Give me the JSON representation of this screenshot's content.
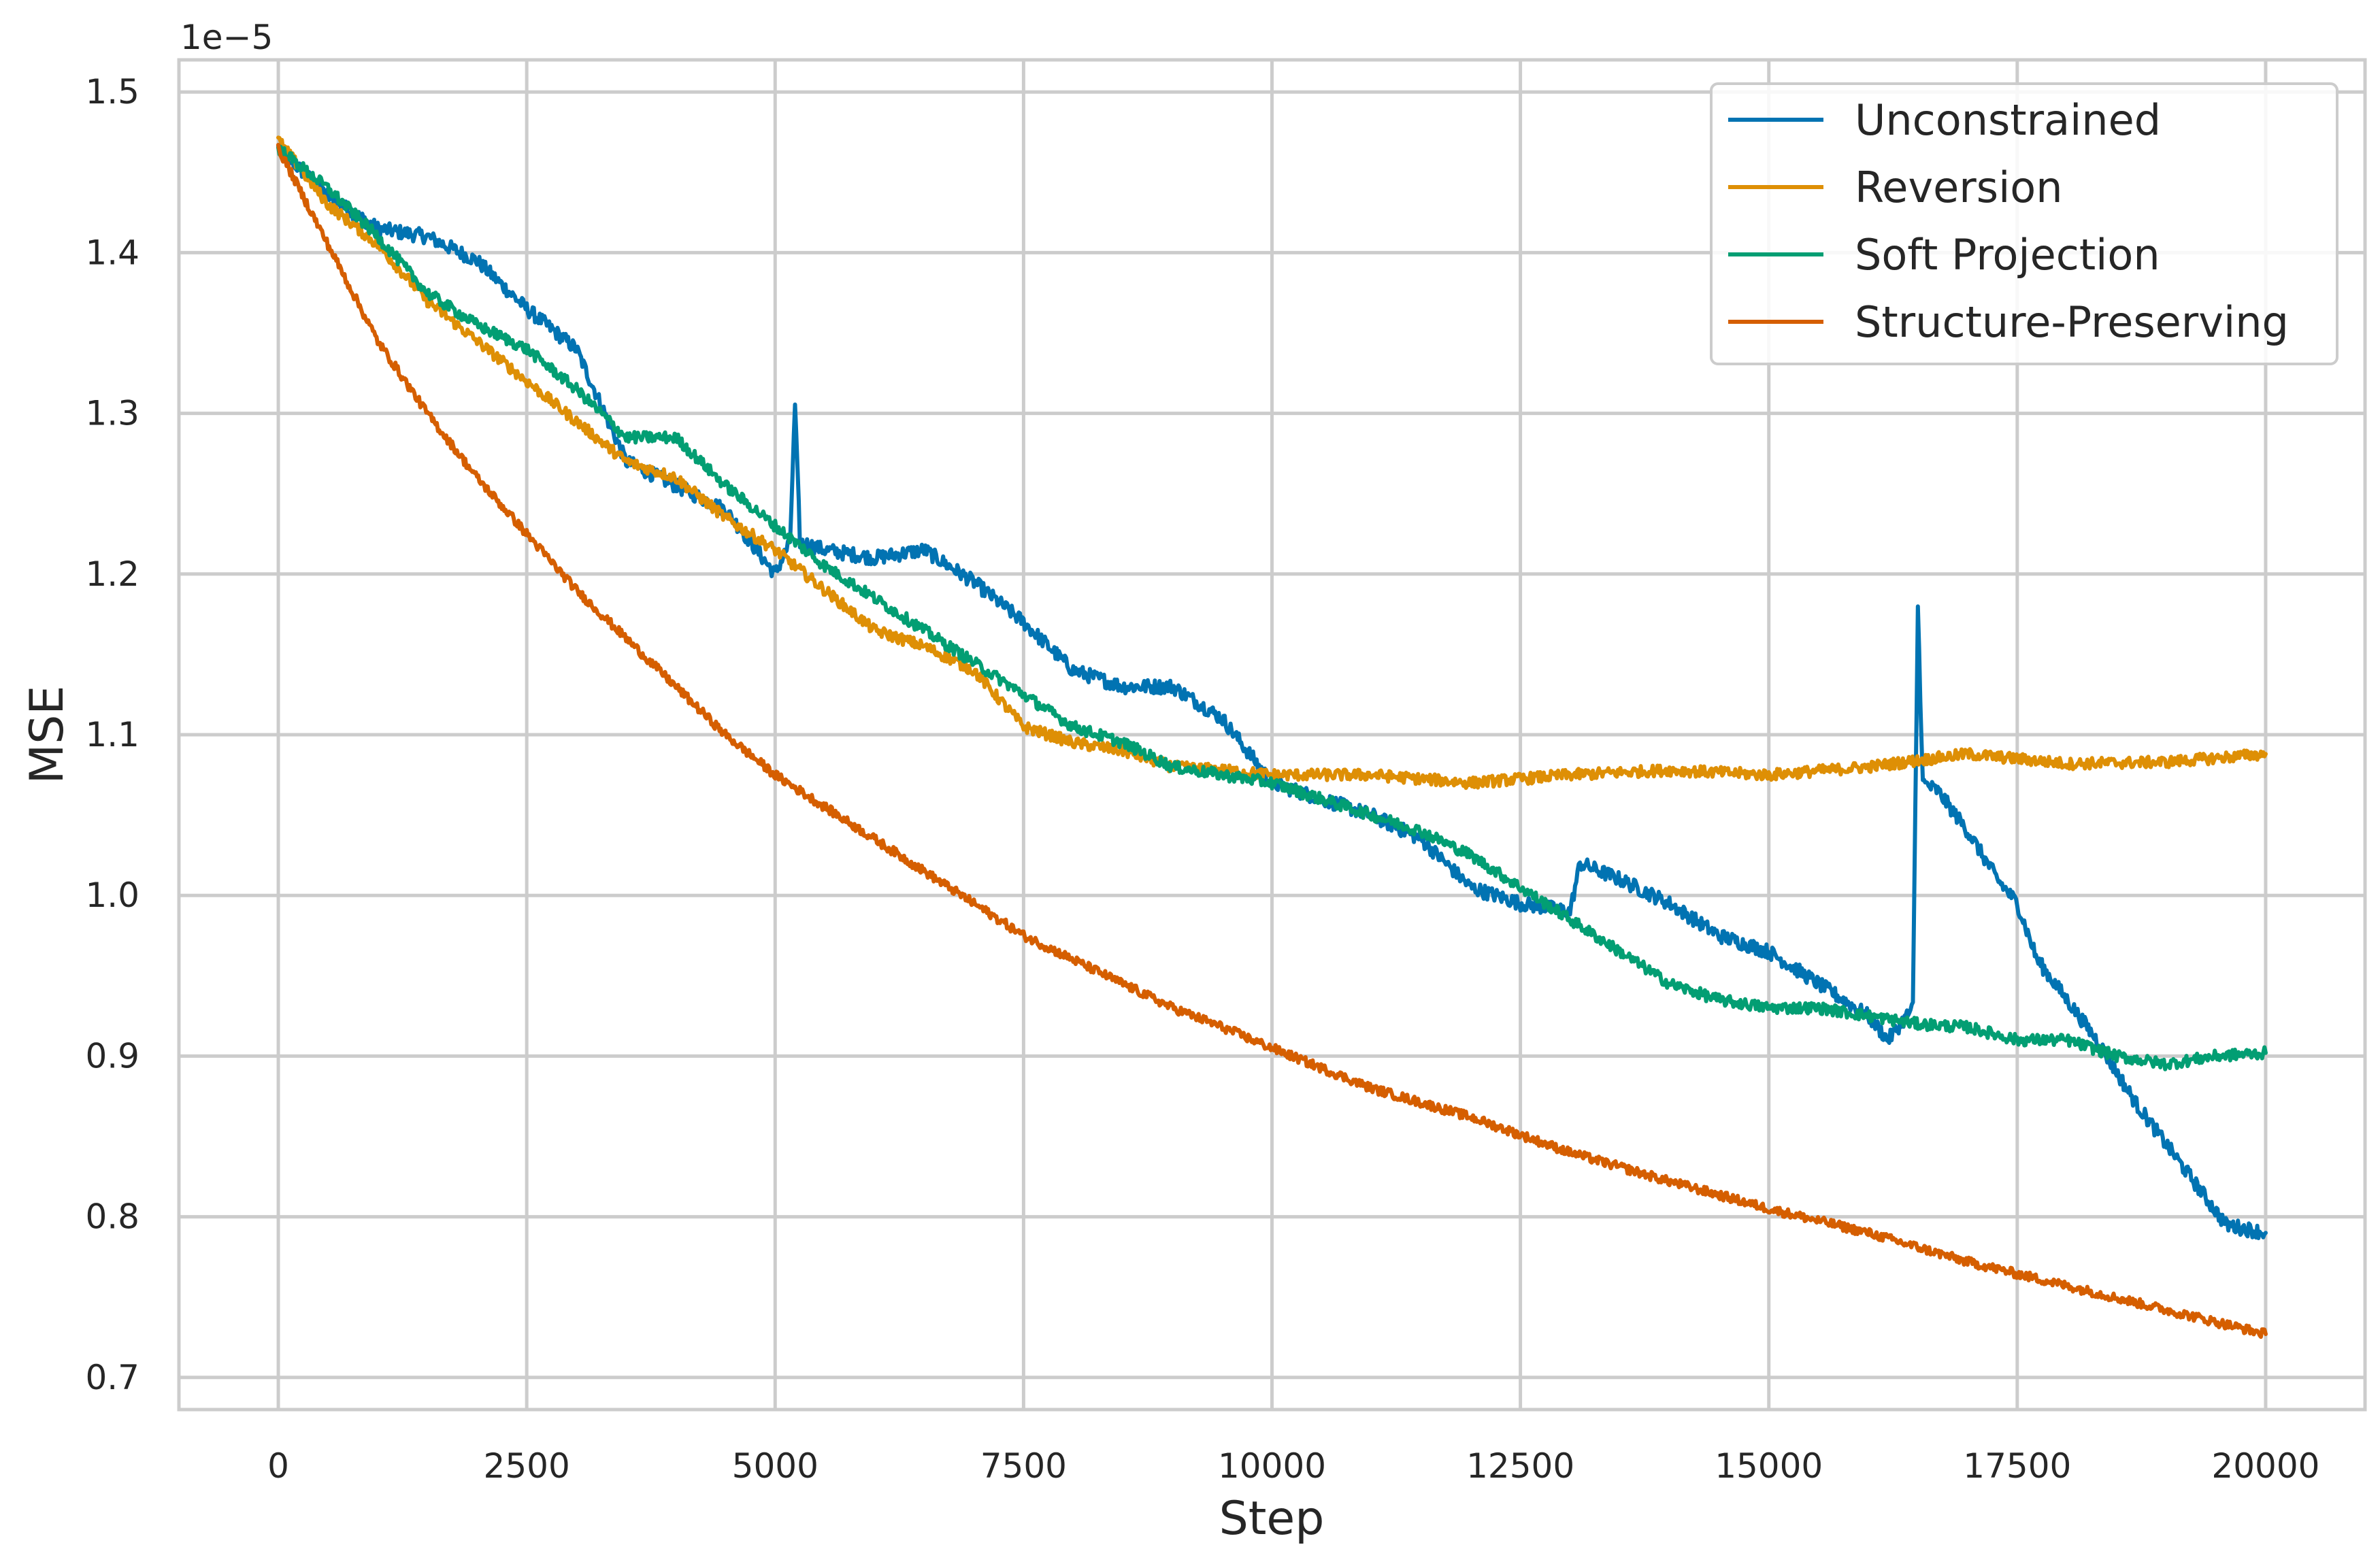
{
  "chart_data": {
    "type": "line",
    "title": "",
    "xlabel": "Step",
    "ylabel": "MSE",
    "y_scale_label": "1e−5",
    "xlim": [
      -1000,
      21000
    ],
    "ylim": [
      0.68,
      1.52
    ],
    "x_ticks": [
      0,
      2500,
      5000,
      7500,
      10000,
      12500,
      15000,
      17500,
      20000
    ],
    "y_ticks": [
      0.7,
      0.8,
      0.9,
      1.0,
      1.1,
      1.2,
      1.3,
      1.4,
      1.5
    ],
    "x_tick_labels": [
      "0",
      "2500",
      "5000",
      "7500",
      "10000",
      "12500",
      "15000",
      "17500",
      "20000"
    ],
    "y_tick_labels": [
      "0.7",
      "0.8",
      "0.9",
      "1.0",
      "1.1",
      "1.2",
      "1.3",
      "1.4",
      "1.5"
    ],
    "grid": true,
    "legend_position": "top-right",
    "series": [
      {
        "name": "Unconstrained",
        "color": "#0173b2",
        "x": [
          0,
          500,
          1000,
          1500,
          2000,
          2500,
          3000,
          3500,
          4000,
          4500,
          5000,
          5150,
          5200,
          5250,
          5500,
          6000,
          6500,
          7000,
          7500,
          8000,
          8500,
          9000,
          9500,
          10000,
          10500,
          11000,
          11500,
          12000,
          12500,
          13000,
          13100,
          13500,
          14000,
          14500,
          15000,
          15500,
          16000,
          16200,
          16450,
          16500,
          16550,
          16700,
          17000,
          17300,
          17500,
          17700,
          18000,
          18300,
          18500,
          18700,
          19000,
          19300,
          19600,
          20000
        ],
        "y": [
          1.465,
          1.435,
          1.415,
          1.41,
          1.395,
          1.365,
          1.34,
          1.27,
          1.255,
          1.24,
          1.2,
          1.22,
          1.305,
          1.22,
          1.215,
          1.21,
          1.215,
          1.195,
          1.17,
          1.14,
          1.13,
          1.13,
          1.11,
          1.07,
          1.06,
          1.05,
          1.035,
          1.005,
          0.995,
          0.99,
          1.02,
          1.01,
          0.995,
          0.975,
          0.965,
          0.945,
          0.925,
          0.91,
          0.93,
          1.18,
          1.07,
          1.065,
          1.04,
          1.01,
          0.995,
          0.96,
          0.935,
          0.91,
          0.89,
          0.87,
          0.845,
          0.82,
          0.795,
          0.79
        ]
      },
      {
        "name": "Reversion",
        "color": "#de8f05",
        "x": [
          0,
          500,
          1000,
          1500,
          2000,
          2500,
          3000,
          3500,
          4000,
          4500,
          5000,
          5500,
          6000,
          6500,
          7000,
          7500,
          8000,
          8500,
          9000,
          9500,
          10000,
          11000,
          12000,
          13000,
          14000,
          15000,
          16000,
          17000,
          18000,
          19000,
          20000
        ],
        "y": [
          1.47,
          1.43,
          1.405,
          1.37,
          1.345,
          1.32,
          1.295,
          1.27,
          1.26,
          1.235,
          1.215,
          1.19,
          1.165,
          1.155,
          1.14,
          1.105,
          1.095,
          1.09,
          1.08,
          1.078,
          1.075,
          1.075,
          1.07,
          1.075,
          1.078,
          1.075,
          1.08,
          1.088,
          1.082,
          1.083,
          1.088
        ]
      },
      {
        "name": "Soft Projection",
        "color": "#029e73",
        "x": [
          0,
          500,
          1000,
          1500,
          2000,
          2500,
          3000,
          3500,
          4000,
          4500,
          5000,
          5500,
          6000,
          6500,
          7000,
          7500,
          8000,
          8500,
          9000,
          9500,
          10000,
          10500,
          11000,
          11500,
          12000,
          12500,
          13000,
          13500,
          14000,
          14500,
          15000,
          15500,
          16000,
          16500,
          17000,
          17500,
          18000,
          18500,
          19000,
          19500,
          20000
        ],
        "y": [
          1.465,
          1.44,
          1.41,
          1.375,
          1.355,
          1.34,
          1.315,
          1.285,
          1.285,
          1.255,
          1.23,
          1.205,
          1.185,
          1.165,
          1.145,
          1.125,
          1.105,
          1.095,
          1.08,
          1.075,
          1.07,
          1.06,
          1.05,
          1.04,
          1.025,
          1.005,
          0.985,
          0.965,
          0.945,
          0.935,
          0.93,
          0.93,
          0.925,
          0.92,
          0.918,
          0.91,
          0.91,
          0.9,
          0.895,
          0.9,
          0.902
        ]
      },
      {
        "name": "Structure-Preserving",
        "color": "#d55e00",
        "x": [
          0,
          500,
          1000,
          1500,
          2000,
          2500,
          3000,
          3500,
          4000,
          4500,
          5000,
          5500,
          6000,
          6500,
          7000,
          7500,
          8000,
          8500,
          9000,
          9500,
          10000,
          11000,
          12000,
          13000,
          14000,
          15000,
          16000,
          17000,
          18000,
          19000,
          20000
        ],
        "y": [
          1.465,
          1.405,
          1.345,
          1.3,
          1.26,
          1.225,
          1.19,
          1.16,
          1.13,
          1.1,
          1.075,
          1.055,
          1.035,
          1.015,
          0.995,
          0.975,
          0.96,
          0.945,
          0.93,
          0.918,
          0.905,
          0.88,
          0.862,
          0.84,
          0.822,
          0.805,
          0.79,
          0.772,
          0.757,
          0.742,
          0.727
        ]
      }
    ]
  }
}
